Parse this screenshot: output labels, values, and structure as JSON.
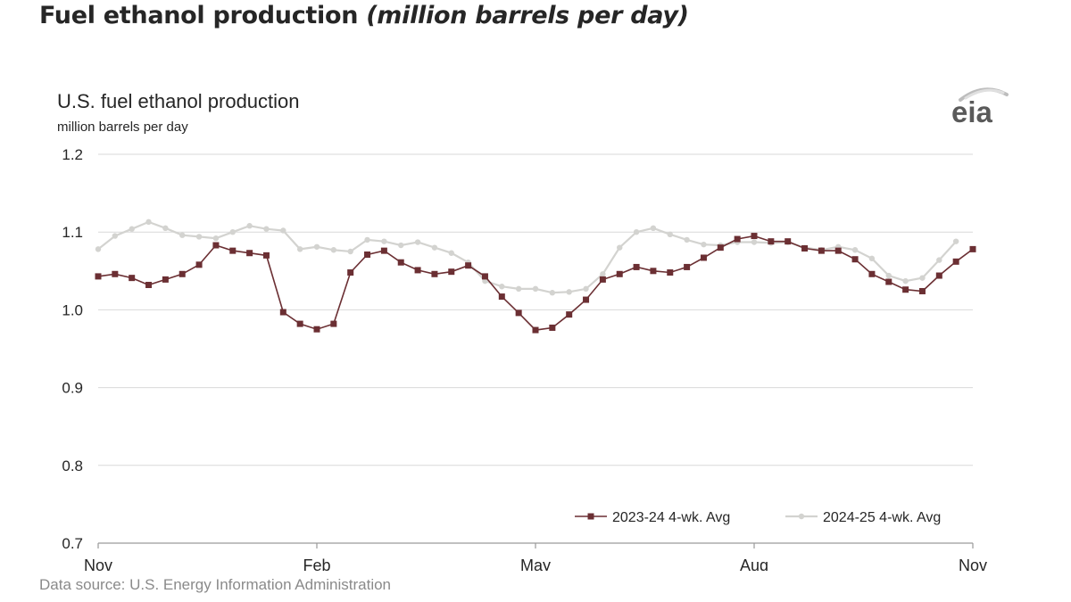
{
  "headline": {
    "main": "Fuel ethanol production",
    "unit": "(million barrels per day)"
  },
  "logo_text": "eia",
  "source": "Data source: U.S. Energy Information Administration",
  "colors": {
    "series_2023": "#6b2f33",
    "series_2024": "#d3d3d0",
    "grid": "#d9d9d9",
    "axis": "#9a9a9a",
    "text": "#262626"
  },
  "chart_data": {
    "type": "line",
    "title": "U.S. fuel ethanol production",
    "ylabel": "million barrels per day",
    "ylim": [
      0.7,
      1.2
    ],
    "y_ticks": [
      0.7,
      0.8,
      0.9,
      1.0,
      1.1,
      1.2
    ],
    "y_tick_labels": [
      "0.7",
      "0.8",
      "0.9",
      "1.0",
      "1.1",
      "1.2"
    ],
    "x_tick_labels": [
      "Nov",
      "Feb",
      "May",
      "Aug",
      "Nov"
    ],
    "x_range_weeks": [
      0,
      52
    ],
    "x_ticks_week": [
      0,
      13,
      26,
      39,
      52
    ],
    "grid": true,
    "legend_position": "bottom-right",
    "series": [
      {
        "name": "2023-24  4-wk. Avg",
        "marker": "square",
        "color_key": "series_2023",
        "values": [
          1.043,
          1.046,
          1.041,
          1.032,
          1.039,
          1.046,
          1.058,
          1.083,
          1.076,
          1.073,
          1.07,
          0.997,
          0.982,
          0.975,
          0.982,
          1.048,
          1.071,
          1.076,
          1.061,
          1.051,
          1.046,
          1.049,
          1.057,
          1.043,
          1.017,
          0.996,
          0.974,
          0.977,
          0.994,
          1.013,
          1.039,
          1.046,
          1.055,
          1.05,
          1.048,
          1.055,
          1.067,
          1.08,
          1.091,
          1.095,
          1.088,
          1.088,
          1.079,
          1.076,
          1.076,
          1.065,
          1.046,
          1.036,
          1.026,
          1.024,
          1.044,
          1.062,
          1.078
        ]
      },
      {
        "name": "2024-25  4-wk. Avg",
        "marker": "circle",
        "color_key": "series_2024",
        "values": [
          1.078,
          1.095,
          1.104,
          1.113,
          1.105,
          1.096,
          1.094,
          1.092,
          1.1,
          1.108,
          1.104,
          1.102,
          1.078,
          1.081,
          1.077,
          1.075,
          1.09,
          1.088,
          1.083,
          1.087,
          1.08,
          1.073,
          1.061,
          1.037,
          1.03,
          1.027,
          1.027,
          1.022,
          1.023,
          1.027,
          1.046,
          1.08,
          1.1,
          1.105,
          1.097,
          1.09,
          1.084,
          1.083,
          1.087,
          1.087,
          1.086,
          1.087,
          1.08,
          1.077,
          1.081,
          1.077,
          1.066,
          1.044,
          1.037,
          1.041,
          1.064,
          1.088
        ]
      }
    ]
  }
}
